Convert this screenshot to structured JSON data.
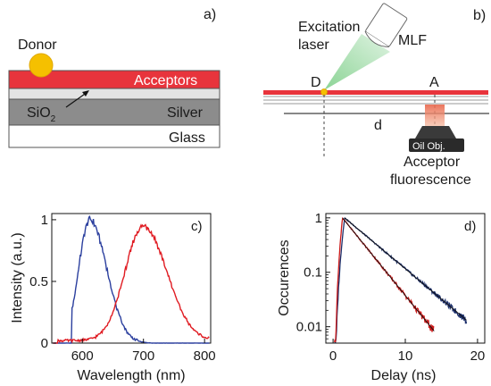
{
  "panel_a": {
    "label": "a)",
    "donor": "Donor",
    "acceptors": "Acceptors",
    "sio2_main": "SiO",
    "sio2_sub": "2",
    "silver": "Silver",
    "glass": "Glass",
    "colors": {
      "acceptors": "#e8343c",
      "donor": "#f5c000",
      "silver": "#8c8c8c",
      "sio2": "#d8d8d8"
    }
  },
  "panel_b": {
    "label": "b)",
    "excitation_line1": "Excitation",
    "excitation_line2": "laser",
    "mlf": "MLF",
    "d_point": "D",
    "a_point": "A",
    "distance": "d",
    "objective": "Oil Obj.",
    "acceptor_line1": "Acceptor",
    "acceptor_line2": "fluorescence",
    "colors": {
      "laser": "#7fcf8a",
      "acceptor_layer": "#e8343c",
      "fluorescence": "#f08a6a"
    }
  },
  "chart_data": [
    {
      "type": "line",
      "panel": "c)",
      "xlabel": "Wavelength (nm)",
      "ylabel": "Intensity (a.u.)",
      "xlim": [
        550,
        810
      ],
      "ylim": [
        0,
        1.05
      ],
      "xticks": [
        600,
        700,
        800
      ],
      "yticks": [
        0,
        0.5,
        1
      ],
      "ytick_labels": [
        "0",
        "0.5",
        "1"
      ],
      "series": [
        {
          "color": "#2b3f9e",
          "peak": 612,
          "width_left": 18,
          "width_right": 28,
          "amplitude": 1.0,
          "onset": 583
        },
        {
          "color": "#e01b22",
          "peak": 700,
          "width_left": 30,
          "width_right": 38,
          "amplitude": 0.93,
          "onset": 560
        }
      ]
    },
    {
      "type": "line",
      "panel": "d)",
      "xlabel": "Delay (ns)",
      "ylabel": "Occurences",
      "yscale": "log",
      "xlim": [
        -1,
        21
      ],
      "ylim": [
        0.005,
        1.2
      ],
      "xticks": [
        0,
        10,
        20
      ],
      "yticks": [
        0.01,
        0.1,
        1
      ],
      "ytick_labels": [
        "0.01",
        "0.1",
        "1"
      ],
      "series": [
        {
          "color": "#1c2f6b",
          "rise_time": 1.6,
          "lifetime": 3.9,
          "end": 18.5
        },
        {
          "color": "#cc1a1a",
          "rise_time": 1.3,
          "lifetime": 2.65,
          "end": 14
        }
      ],
      "fit_color": "#111111"
    }
  ]
}
